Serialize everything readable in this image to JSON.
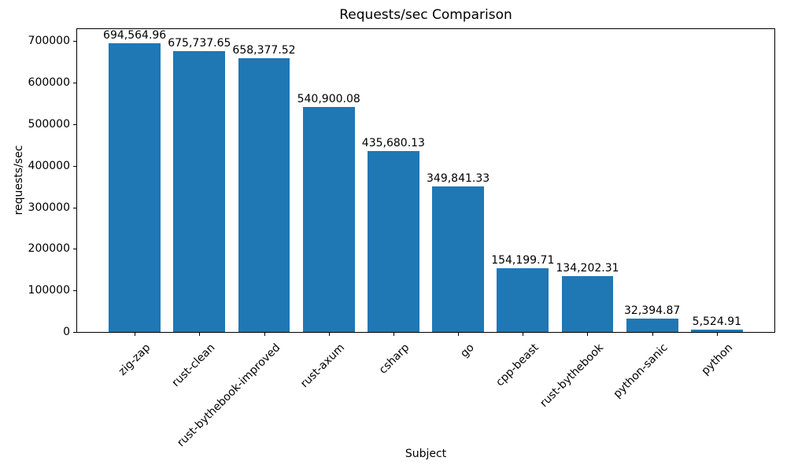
{
  "chart_data": {
    "type": "bar",
    "title": "Requests/sec Comparison",
    "xlabel": "Subject",
    "ylabel": "requests/sec",
    "categories": [
      "zig-zap",
      "rust-clean",
      "rust-bythebook-improved",
      "rust-axum",
      "csharp",
      "go",
      "cpp-beast",
      "rust-bythebook",
      "python-sanic",
      "python"
    ],
    "values": [
      694564.96,
      675737.65,
      658377.52,
      540900.08,
      435680.13,
      349841.33,
      154199.71,
      134202.31,
      32394.87,
      5524.91
    ],
    "value_labels": [
      "694,564.96",
      "675,737.65",
      "658,377.52",
      "540,900.08",
      "435,680.13",
      "349,841.33",
      "154,199.71",
      "134,202.31",
      "32,394.87",
      "5,524.91"
    ],
    "yticks": [
      0,
      100000,
      200000,
      300000,
      400000,
      500000,
      600000,
      700000
    ],
    "ylim": [
      0,
      729293
    ],
    "x_tick_rotation_deg": 45,
    "grid": false,
    "bar_color": "#1f77b4",
    "text_color": "#000000",
    "axis_color": "#000000"
  }
}
